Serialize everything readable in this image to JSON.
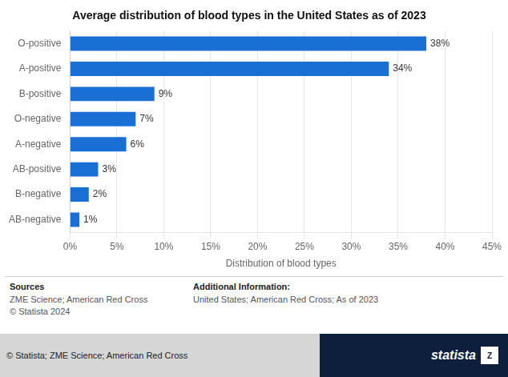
{
  "chart_data": {
    "type": "bar",
    "orientation": "horizontal",
    "title": "Average distribution of blood types in the United States as of 2023",
    "xlabel": "Distribution of blood types",
    "categories": [
      "O-positive",
      "A-positive",
      "B-positive",
      "O-negative",
      "A-negative",
      "AB-positive",
      "B-negative",
      "AB-negative"
    ],
    "values": [
      38,
      34,
      9,
      7,
      6,
      3,
      2,
      1
    ],
    "value_labels": [
      "38%",
      "34%",
      "9%",
      "7%",
      "6%",
      "3%",
      "2%",
      "1%"
    ],
    "data_labels": true,
    "color": "#1a6fd4",
    "xlim": [
      0,
      45
    ],
    "xticks": [
      {
        "value": 0,
        "label": "0%"
      },
      {
        "value": 5,
        "label": "5%"
      },
      {
        "value": 10,
        "label": "10%"
      },
      {
        "value": 15,
        "label": "15%"
      },
      {
        "value": 20,
        "label": "20%"
      },
      {
        "value": 25,
        "label": "25%"
      },
      {
        "value": 30,
        "label": "30%"
      },
      {
        "value": 35,
        "label": "35%"
      },
      {
        "value": 40,
        "label": "40%"
      },
      {
        "value": 45,
        "label": "45%"
      }
    ],
    "grid": true,
    "annotations": [
      "Sources",
      "ZME Science; American Red Cross\n© Statista 2024",
      "Additional Information:",
      "United States; American Red Cross; As of 2023",
      "© Statista; ZME Science; American Red Cross",
      "statista",
      "Z"
    ]
  }
}
